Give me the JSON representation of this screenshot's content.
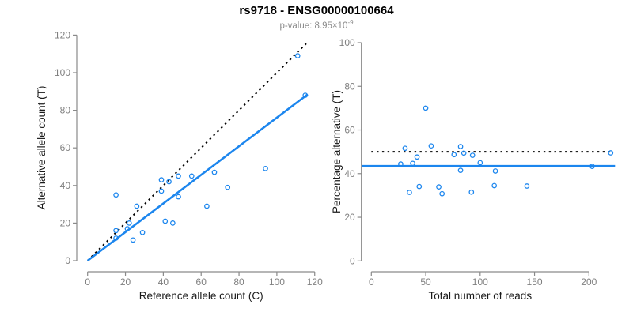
{
  "header": {
    "title": "rs9718 - ENSG00000100664",
    "pvalue_base": "p-value: 8.95×10",
    "pvalue_exponent": "-9"
  },
  "colors": {
    "accent_blue": "#1C86EE",
    "dotted_black": "#000000",
    "axis_gray": "#8a8a8a",
    "tick_label_gray": "#7f7f7f",
    "axis_title_black": "#1a1a1a"
  },
  "chart_data": [
    {
      "type": "scatter",
      "name": "allele-counts",
      "title": "rs9718 - ENSG00000100664",
      "subtitle": "p-value: 8.95×10^-9",
      "xlabel": "Reference allele count (C)",
      "ylabel": "Alternative allele count (T)",
      "xlim": [
        0,
        120
      ],
      "ylim": [
        0,
        120
      ],
      "xticks": [
        0,
        20,
        40,
        60,
        80,
        100,
        120
      ],
      "yticks": [
        0,
        20,
        40,
        60,
        80,
        100,
        120
      ],
      "grid": false,
      "point_color": "#1C86EE",
      "points": [
        [
          15,
          12
        ],
        [
          15,
          16
        ],
        [
          24,
          11
        ],
        [
          21,
          17
        ],
        [
          22,
          20
        ],
        [
          29,
          15
        ],
        [
          15,
          35
        ],
        [
          26,
          29
        ],
        [
          41,
          21
        ],
        [
          45,
          20
        ],
        [
          39,
          37
        ],
        [
          39,
          43
        ],
        [
          48,
          34
        ],
        [
          43,
          42
        ],
        [
          63,
          29
        ],
        [
          48,
          45
        ],
        [
          55,
          45
        ],
        [
          74,
          39
        ],
        [
          67,
          47
        ],
        [
          94,
          49
        ],
        [
          115,
          88
        ],
        [
          111,
          109
        ]
      ],
      "lines": [
        {
          "name": "identity",
          "style": "dotted",
          "color": "#000000",
          "width": 2,
          "from": [
            0,
            0
          ],
          "to": [
            115.5,
            115.5
          ]
        },
        {
          "name": "fit",
          "style": "solid",
          "color": "#1C86EE",
          "width": 2.6,
          "from": [
            0,
            0
          ],
          "to": [
            116.3,
            88.5
          ]
        }
      ]
    },
    {
      "type": "scatter",
      "name": "percentage-alternative",
      "xlabel": "Total number of reads",
      "ylabel": "Percentage alternative (T)",
      "xlim": [
        0,
        222
      ],
      "ylim": [
        0,
        100
      ],
      "xticks": [
        0,
        50,
        100,
        150,
        200
      ],
      "yticks": [
        0,
        20,
        40,
        60,
        80,
        100
      ],
      "grid": false,
      "point_color": "#1C86EE",
      "points": [
        [
          27,
          44.4
        ],
        [
          31,
          51.6
        ],
        [
          35,
          31.4
        ],
        [
          38,
          44.7
        ],
        [
          42,
          47.6
        ],
        [
          44,
          34.1
        ],
        [
          50,
          70.0
        ],
        [
          55,
          52.7
        ],
        [
          62,
          33.9
        ],
        [
          65,
          30.8
        ],
        [
          76,
          48.7
        ],
        [
          82,
          52.4
        ],
        [
          82,
          41.5
        ],
        [
          85,
          49.4
        ],
        [
          92,
          31.5
        ],
        [
          93,
          48.4
        ],
        [
          100,
          45.0
        ],
        [
          113,
          34.5
        ],
        [
          114,
          41.2
        ],
        [
          143,
          34.3
        ],
        [
          203,
          43.3
        ],
        [
          220,
          49.5
        ]
      ],
      "lines": [
        {
          "name": "expected-50pct",
          "style": "dotted",
          "color": "#000000",
          "width": 2,
          "from": [
            0,
            50
          ],
          "to": [
            222,
            50
          ]
        },
        {
          "name": "mean-percentage",
          "style": "solid",
          "color": "#1C86EE",
          "width": 3,
          "from": [
            -9,
            43.4
          ],
          "to": [
            224,
            43.4
          ]
        }
      ]
    }
  ]
}
